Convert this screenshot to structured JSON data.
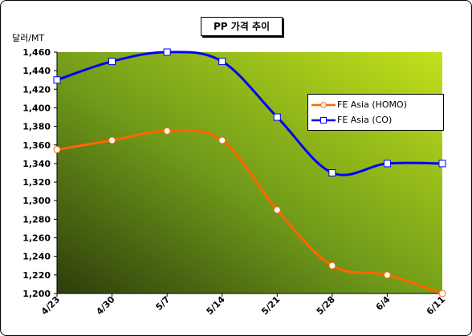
{
  "chart_data": {
    "type": "line",
    "title": "PP 가격 추이",
    "ylabel": "달러/MT",
    "xlabel": "",
    "categories": [
      "4/23",
      "4/30",
      "5/7",
      "5/14",
      "5/21",
      "5/28",
      "6/4",
      "6/11"
    ],
    "ylim": [
      1200,
      1460
    ],
    "yticks": [
      "1,200",
      "1,220",
      "1,240",
      "1,260",
      "1,280",
      "1,300",
      "1,320",
      "1,340",
      "1,360",
      "1,380",
      "1,400",
      "1,420",
      "1,440",
      "1,460"
    ],
    "grid": false,
    "legend_position": "right",
    "series": [
      {
        "name": "FE Asia (HOMO)",
        "color": "#ff6600",
        "marker": "circle",
        "values": [
          1355,
          1365,
          1375,
          1365,
          1290,
          1230,
          1220,
          1200
        ]
      },
      {
        "name": "FE Asia (CO)",
        "color": "#0000ff",
        "marker": "square",
        "values": [
          1430,
          1450,
          1460,
          1450,
          1390,
          1330,
          1340,
          1340
        ]
      }
    ]
  }
}
